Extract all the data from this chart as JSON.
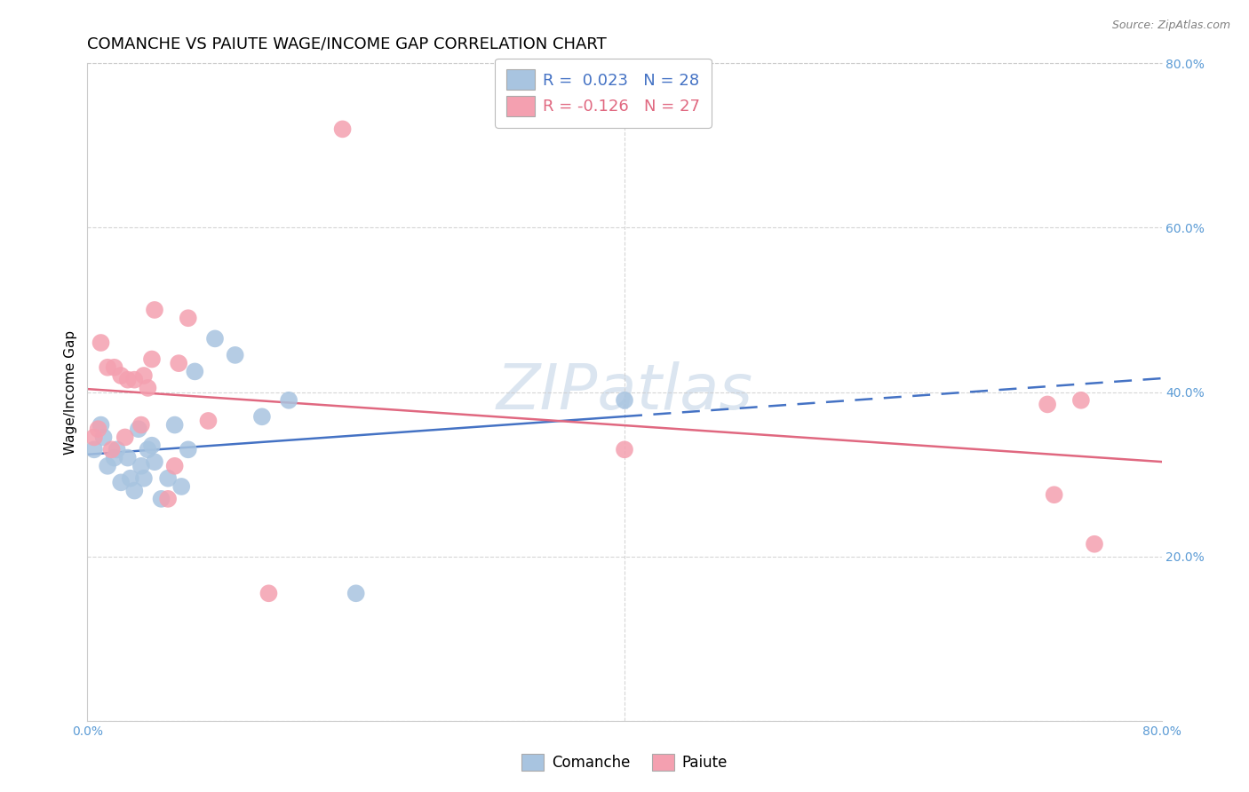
{
  "title": "COMANCHE VS PAIUTE WAGE/INCOME GAP CORRELATION CHART",
  "source": "Source: ZipAtlas.com",
  "ylabel": "Wage/Income Gap",
  "xlim": [
    0.0,
    0.8
  ],
  "ylim": [
    0.0,
    0.8
  ],
  "ytick_positions": [
    0.0,
    0.2,
    0.4,
    0.6,
    0.8
  ],
  "ytick_labels": [
    "",
    "20.0%",
    "40.0%",
    "60.0%",
    "80.0%"
  ],
  "xtick_positions": [
    0.0,
    0.8
  ],
  "xtick_labels": [
    "0.0%",
    "80.0%"
  ],
  "comanche_x": [
    0.005,
    0.01,
    0.012,
    0.015,
    0.02,
    0.022,
    0.025,
    0.03,
    0.032,
    0.035,
    0.038,
    0.04,
    0.042,
    0.045,
    0.048,
    0.05,
    0.055,
    0.06,
    0.065,
    0.07,
    0.075,
    0.08,
    0.095,
    0.11,
    0.13,
    0.15,
    0.2,
    0.4
  ],
  "comanche_y": [
    0.33,
    0.36,
    0.345,
    0.31,
    0.32,
    0.33,
    0.29,
    0.32,
    0.295,
    0.28,
    0.355,
    0.31,
    0.295,
    0.33,
    0.335,
    0.315,
    0.27,
    0.295,
    0.36,
    0.285,
    0.33,
    0.425,
    0.465,
    0.445,
    0.37,
    0.39,
    0.155,
    0.39
  ],
  "paiute_x": [
    0.005,
    0.008,
    0.01,
    0.015,
    0.018,
    0.02,
    0.025,
    0.028,
    0.03,
    0.035,
    0.04,
    0.042,
    0.045,
    0.048,
    0.05,
    0.06,
    0.065,
    0.068,
    0.075,
    0.09,
    0.135,
    0.19,
    0.4,
    0.715,
    0.72,
    0.74,
    0.75
  ],
  "paiute_y": [
    0.345,
    0.355,
    0.46,
    0.43,
    0.33,
    0.43,
    0.42,
    0.345,
    0.415,
    0.415,
    0.36,
    0.42,
    0.405,
    0.44,
    0.5,
    0.27,
    0.31,
    0.435,
    0.49,
    0.365,
    0.155,
    0.72,
    0.33,
    0.385,
    0.275,
    0.39,
    0.215
  ],
  "comanche_r": 0.023,
  "comanche_n": 28,
  "paiute_r": -0.126,
  "paiute_n": 27,
  "comanche_color": "#a8c4e0",
  "paiute_color": "#f4a0b0",
  "comanche_line_color": "#4472c4",
  "paiute_line_color": "#e06880",
  "background_color": "#ffffff",
  "grid_color": "#cccccc",
  "title_fontsize": 13,
  "label_fontsize": 11,
  "tick_fontsize": 10,
  "axis_color": "#5b9bd5",
  "legend_color_comanche": "#a8c4e0",
  "legend_color_paiute": "#f4a0b0",
  "legend_text_color_comanche": "#4472c4",
  "legend_text_color_paiute": "#e06880"
}
